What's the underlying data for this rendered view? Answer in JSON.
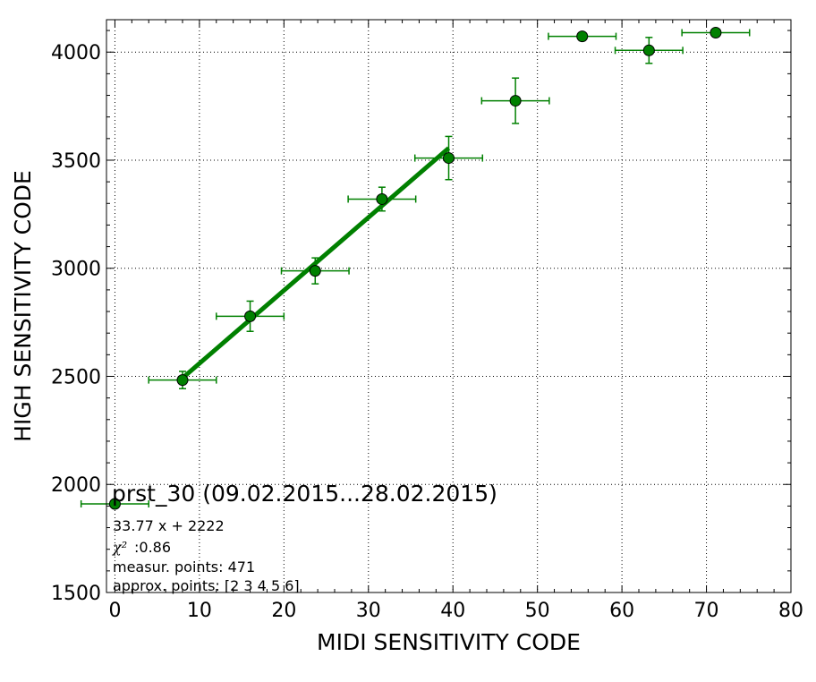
{
  "chart_data": {
    "type": "scatter",
    "xlabel": "MIDI SENSITIVITY CODE",
    "ylabel": "HIGH SENSITIVITY CODE",
    "xlim": [
      -1,
      80
    ],
    "ylim": [
      1500,
      4150
    ],
    "x_ticks": [
      0,
      10,
      20,
      30,
      40,
      50,
      60,
      70,
      80
    ],
    "y_ticks": [
      1500,
      2000,
      2500,
      3000,
      3500,
      4000
    ],
    "grid": true,
    "colors": {
      "series": "#008000",
      "marker_fill": "#008000",
      "marker_edge": "#000000"
    },
    "series": [
      {
        "points": [
          {
            "x": 0,
            "y": 1910,
            "xerr": 4,
            "yerr": 0
          },
          {
            "x": 8,
            "y": 2483,
            "xerr": 4,
            "yerr": 40
          },
          {
            "x": 16,
            "y": 2778,
            "xerr": 4,
            "yerr": 70
          },
          {
            "x": 23.7,
            "y": 2988,
            "xerr": 4,
            "yerr": 60
          },
          {
            "x": 31.6,
            "y": 3320,
            "xerr": 4,
            "yerr": 55
          },
          {
            "x": 39.5,
            "y": 3510,
            "xerr": 4,
            "yerr": 100
          },
          {
            "x": 47.4,
            "y": 3775,
            "xerr": 4,
            "yerr": 105
          },
          {
            "x": 55.3,
            "y": 4073,
            "xerr": 4,
            "yerr": 0
          },
          {
            "x": 63.2,
            "y": 4008,
            "xerr": 4,
            "yerr": 60
          },
          {
            "x": 71.1,
            "y": 4090,
            "xerr": 4,
            "yerr": 0
          }
        ]
      }
    ],
    "fit_line": {
      "slope": 33.77,
      "intercept": 2222,
      "x_range": [
        8,
        39.5
      ]
    },
    "annotation": {
      "title": "prst_30 (09.02.2015...28.02.2015)",
      "equation": "33.77 x + 2222",
      "chi_symbol": "χ²",
      "chi_value": ":0.86",
      "measur_points": "measur. points: 471",
      "approx_points": "approx. points: [2 3 4 5 6]"
    }
  }
}
